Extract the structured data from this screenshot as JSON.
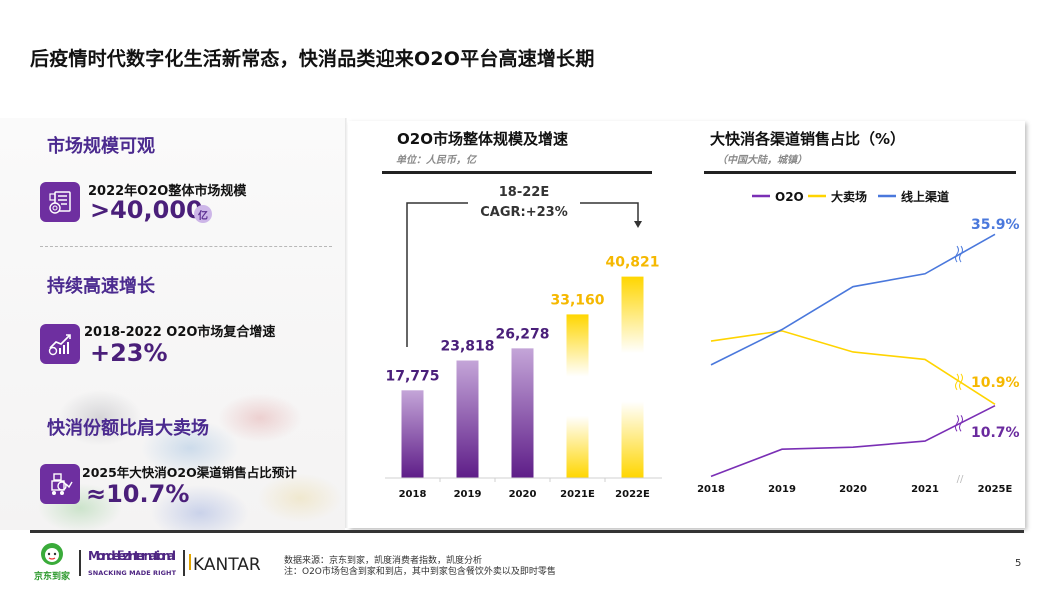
{
  "page": {
    "title": "后疫情时代数字化生活新常态，快消品类迎来O2O平台高速增长期",
    "page_number": "5"
  },
  "left_panel": {
    "sections": [
      {
        "title": "市场规模可观",
        "icon": "report-document-icon",
        "label": "2022年O2O整体市场规模",
        "value": ">40,000",
        "unit": "亿"
      },
      {
        "title": "持续高速增长",
        "icon": "growth-chart-icon",
        "label": "2018-2022 O2O市场复合增速",
        "value": "+23%"
      },
      {
        "title": "快消份额比肩大卖场",
        "icon": "delivery-robot-icon",
        "label": "2025年大快消O2O渠道销售占比预计",
        "value": "≈10.7%"
      }
    ]
  },
  "chart_data": [
    {
      "type": "bar",
      "title": "O2O市场整体规模及增速",
      "subtitle": "单位：人民币，亿",
      "categories": [
        "2018",
        "2019",
        "2020",
        "2021E",
        "2022E"
      ],
      "values": [
        17775,
        23818,
        26278,
        33160,
        40821
      ],
      "value_labels": [
        "17,775",
        "23,818",
        "26,278",
        "33,160",
        "40,821"
      ],
      "projected": [
        false,
        false,
        false,
        true,
        true
      ],
      "annotation": {
        "line1": "18-22E",
        "line2": "CAGR:+23%"
      },
      "colors": {
        "actual": "#6a2a93",
        "actual_light": "#c5a8d8",
        "projected": "#ffd600",
        "label_actual": "#4a1f7a",
        "label_projected": "#f5b800"
      },
      "ylim": [
        0,
        45000
      ],
      "xlabel": "",
      "ylabel": "",
      "grid": false
    },
    {
      "type": "line",
      "title": "大快消各渠道销售占比（%）",
      "subtitle": "（中国大陆，城镇）",
      "categories": [
        "2018",
        "2019",
        "2020",
        "2021",
        "2025E"
      ],
      "axis_break_between": [
        "2021",
        "2025E"
      ],
      "axis_break_label": "//",
      "legend_position": "top-center",
      "series": [
        {
          "name": "O2O",
          "color": "#7a2fb5",
          "values": [
            0.3,
            4.3,
            4.6,
            5.5,
            10.7
          ],
          "end_label": "10.7%"
        },
        {
          "name": "大卖场",
          "color": "#ffd400",
          "values": [
            20.2,
            21.7,
            18.6,
            17.5,
            10.9
          ],
          "end_label": "10.9%"
        },
        {
          "name": "线上渠道",
          "color": "#4a78dc",
          "values": [
            16.7,
            21.9,
            28.2,
            30.1,
            35.9
          ],
          "end_label": "35.9%"
        }
      ],
      "label_colors": {
        "O2O": "#6a2a9e",
        "大卖场": "#f5b800",
        "线上渠道": "#4a78dc"
      },
      "ylim": [
        0,
        40
      ],
      "grid": false
    }
  ],
  "footer": {
    "logos": [
      "京东到家",
      "Mondelēz International",
      "SNACKING MADE RIGHT",
      "KANTAR"
    ],
    "source": "数据来源：京东到家，凯度消费者指数，凯度分析",
    "note": "注：O2O市场包含到家和到店，其中到家包含餐饮外卖以及即时零售"
  }
}
